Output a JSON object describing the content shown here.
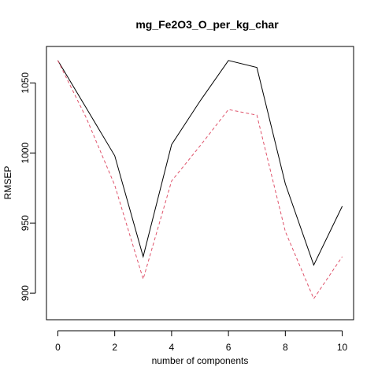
{
  "chart_data": {
    "type": "line",
    "title": "mg_Fe2O3_O_per_kg_char",
    "xlabel": "number of components",
    "ylabel": "RMSEP",
    "xlim": [
      -0.4,
      10.4
    ],
    "ylim": [
      881,
      1076
    ],
    "x_ticks": [
      0,
      2,
      4,
      6,
      8,
      10
    ],
    "y_ticks": [
      900,
      950,
      1000,
      1050
    ],
    "grid": false,
    "legend": "none",
    "x": [
      0,
      1,
      2,
      3,
      4,
      5,
      6,
      7,
      8,
      9,
      10
    ],
    "series": [
      {
        "style": "solid",
        "color": "#000000",
        "values": [
          1066,
          1032,
          998,
          926,
          1006,
          1037,
          1066,
          1061,
          978,
          920,
          962
        ]
      },
      {
        "style": "dashed",
        "color": "#DF536B",
        "values": [
          1066,
          1025,
          977,
          910,
          980,
          1005,
          1031,
          1027,
          944,
          896,
          926
        ]
      }
    ]
  }
}
